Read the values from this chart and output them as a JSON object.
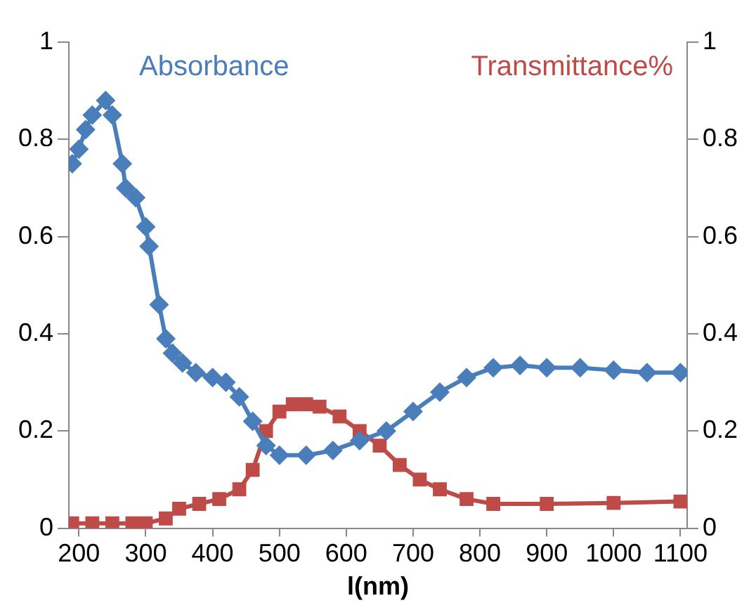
{
  "chart_data": {
    "type": "line",
    "xlabel": "l(nm)",
    "xlim": [
      185,
      1110
    ],
    "xticks": [
      200,
      300,
      400,
      500,
      600,
      700,
      800,
      900,
      1000,
      1100
    ],
    "ylim": [
      0,
      1
    ],
    "yticks": [
      0,
      0.2,
      0.4,
      0.6,
      0.8,
      1
    ],
    "y2lim": [
      0,
      1
    ],
    "y2ticks": [
      0,
      0.2,
      0.4,
      0.6,
      0.8,
      1
    ],
    "grid": false,
    "legend": false,
    "series": [
      {
        "name": "Absorbance",
        "color": "#4a7ebb",
        "marker": "diamond",
        "x": [
          190,
          200,
          210,
          220,
          240,
          250,
          265,
          270,
          285,
          300,
          305,
          320,
          330,
          340,
          355,
          375,
          400,
          420,
          440,
          460,
          480,
          500,
          540,
          580,
          620,
          660,
          700,
          740,
          780,
          820,
          860,
          900,
          950,
          1000,
          1050,
          1100
        ],
        "values": [
          0.75,
          0.78,
          0.82,
          0.85,
          0.88,
          0.85,
          0.75,
          0.7,
          0.68,
          0.62,
          0.58,
          0.46,
          0.39,
          0.36,
          0.34,
          0.32,
          0.31,
          0.3,
          0.27,
          0.22,
          0.17,
          0.15,
          0.15,
          0.16,
          0.18,
          0.2,
          0.24,
          0.28,
          0.31,
          0.33,
          0.335,
          0.33,
          0.33,
          0.325,
          0.32,
          0.32
        ]
      },
      {
        "name": "Transmittance%",
        "color": "#be4b48",
        "marker": "square",
        "axis": "y2",
        "x": [
          190,
          220,
          250,
          280,
          300,
          330,
          350,
          380,
          410,
          440,
          460,
          480,
          500,
          520,
          540,
          560,
          590,
          620,
          650,
          680,
          710,
          740,
          780,
          820,
          900,
          1000,
          1100
        ],
        "values": [
          0.01,
          0.01,
          0.01,
          0.01,
          0.01,
          0.02,
          0.04,
          0.05,
          0.06,
          0.08,
          0.12,
          0.2,
          0.24,
          0.255,
          0.255,
          0.25,
          0.23,
          0.2,
          0.17,
          0.13,
          0.1,
          0.08,
          0.06,
          0.05,
          0.05,
          0.052,
          0.055
        ]
      }
    ]
  }
}
